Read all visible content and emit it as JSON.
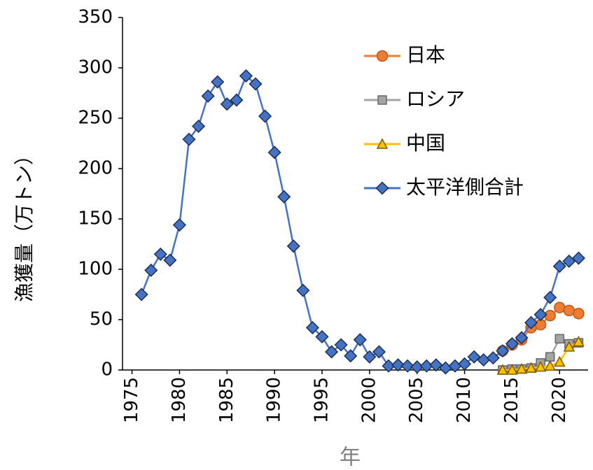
{
  "chart_data": {
    "type": "line",
    "x_label": "年",
    "y_label": "漁獲量（万トン）",
    "x": [
      1976,
      1977,
      1978,
      1979,
      1980,
      1981,
      1982,
      1983,
      1984,
      1985,
      1986,
      1987,
      1988,
      1989,
      1990,
      1991,
      1992,
      1993,
      1994,
      1995,
      1996,
      1997,
      1998,
      1999,
      2000,
      2001,
      2002,
      2003,
      2004,
      2005,
      2006,
      2007,
      2008,
      2009,
      2010,
      2011,
      2012,
      2013,
      2014,
      2015,
      2016,
      2017,
      2018,
      2019,
      2020,
      2021,
      2022
    ],
    "series": [
      {
        "name": "日本",
        "color": "#ed7d31",
        "marker": "circle",
        "values": [
          null,
          null,
          null,
          null,
          null,
          null,
          null,
          null,
          null,
          null,
          null,
          null,
          null,
          null,
          null,
          null,
          null,
          null,
          null,
          null,
          null,
          null,
          null,
          null,
          null,
          null,
          null,
          null,
          null,
          null,
          null,
          null,
          null,
          null,
          null,
          null,
          null,
          null,
          19,
          25,
          30,
          42,
          45,
          54,
          62,
          59,
          56
        ]
      },
      {
        "name": "ロシア",
        "color": "#a5a5a5",
        "marker": "square",
        "values": [
          null,
          null,
          null,
          null,
          null,
          null,
          null,
          null,
          null,
          null,
          null,
          null,
          null,
          null,
          null,
          null,
          null,
          null,
          null,
          null,
          null,
          null,
          null,
          null,
          null,
          null,
          null,
          null,
          null,
          null,
          null,
          null,
          null,
          null,
          null,
          null,
          null,
          null,
          0,
          1,
          1,
          2,
          7,
          13,
          31,
          26,
          27
        ]
      },
      {
        "name": "中国",
        "color": "#ffc000",
        "marker": "triangle",
        "values": [
          null,
          null,
          null,
          null,
          null,
          null,
          null,
          null,
          null,
          null,
          null,
          null,
          null,
          null,
          null,
          null,
          null,
          null,
          null,
          null,
          null,
          null,
          null,
          null,
          null,
          null,
          null,
          null,
          null,
          null,
          null,
          null,
          null,
          null,
          null,
          null,
          null,
          null,
          0,
          0,
          1,
          2,
          3,
          4,
          8,
          23,
          28
        ]
      },
      {
        "name": "太平洋側合計",
        "color": "#4472c4",
        "marker": "diamond",
        "values": [
          75,
          99,
          115,
          109,
          144,
          229,
          242,
          272,
          286,
          264,
          268,
          292,
          284,
          252,
          216,
          172,
          123,
          79,
          42,
          33,
          18,
          25,
          14,
          30,
          13,
          18,
          4,
          5,
          4,
          3,
          4,
          5,
          2,
          4,
          6,
          13,
          10,
          12,
          19,
          26,
          32,
          47,
          55,
          72,
          103,
          108,
          111
        ]
      }
    ],
    "xlim": [
      1974,
      2023
    ],
    "xticks": [
      1975,
      1980,
      1985,
      1990,
      1995,
      2000,
      2005,
      2010,
      2015,
      2020
    ],
    "ylim": [
      0,
      350
    ],
    "yticks": [
      0,
      50,
      100,
      150,
      200,
      250,
      300,
      350
    ],
    "grid": false,
    "legend": "upper right"
  }
}
